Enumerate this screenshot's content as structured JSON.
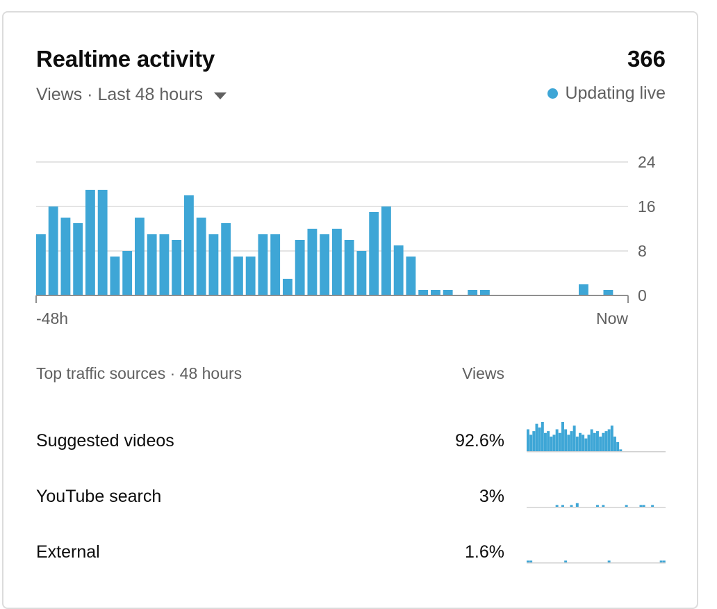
{
  "header": {
    "title": "Realtime activity",
    "total": "366",
    "range_label": "Views · Last 48 hours",
    "live_label": "Updating live"
  },
  "colors": {
    "accent": "#3ea6d6",
    "text_primary": "#0d0d0d",
    "text_secondary": "#606060",
    "gridline": "#dcdcdc"
  },
  "chart_data": {
    "type": "bar",
    "x_start_label": "-48h",
    "x_end_label": "Now",
    "y_ticks": [
      "24",
      "16",
      "8",
      "0"
    ],
    "ylim": [
      0,
      24
    ],
    "values": [
      11,
      16,
      14,
      13,
      19,
      19,
      7,
      8,
      14,
      11,
      11,
      10,
      18,
      14,
      11,
      13,
      7,
      7,
      11,
      11,
      3,
      10,
      12,
      11,
      12,
      10,
      8,
      15,
      16,
      9,
      7,
      1,
      1,
      1,
      0,
      1,
      1,
      0,
      0,
      0,
      0,
      0,
      0,
      0,
      2,
      0,
      1,
      0
    ]
  },
  "traffic": {
    "heading": "Top traffic sources · 48 hours",
    "views_heading": "Views",
    "sources": [
      {
        "label": "Suggested videos",
        "percent": "92.6%",
        "spark": [
          12,
          9,
          11,
          15,
          13,
          16,
          10,
          11,
          8,
          9,
          12,
          10,
          16,
          12,
          9,
          11,
          14,
          8,
          10,
          9,
          7,
          9,
          12,
          10,
          11,
          8,
          10,
          11,
          12,
          14,
          8,
          5,
          1,
          0,
          0,
          0,
          0,
          0,
          0,
          0,
          0,
          0,
          0,
          0,
          0,
          0,
          0,
          0
        ]
      },
      {
        "label": "YouTube search",
        "percent": "3%",
        "spark": [
          0,
          0,
          0,
          0,
          0,
          0,
          0,
          0,
          0,
          0,
          1,
          0,
          1,
          0,
          0,
          1,
          0,
          2,
          0,
          0,
          0,
          0,
          0,
          0,
          1,
          0,
          1,
          0,
          0,
          0,
          0,
          0,
          0,
          0,
          1,
          0,
          0,
          0,
          0,
          1,
          1,
          0,
          0,
          1,
          0,
          0,
          0,
          0
        ]
      },
      {
        "label": "External",
        "percent": "1.6%",
        "spark": [
          1,
          1,
          0,
          0,
          0,
          0,
          0,
          0,
          0,
          0,
          0,
          0,
          0,
          1,
          0,
          0,
          0,
          0,
          0,
          0,
          0,
          0,
          0,
          0,
          0,
          0,
          0,
          0,
          1,
          0,
          0,
          0,
          0,
          0,
          0,
          0,
          0,
          0,
          0,
          0,
          0,
          0,
          0,
          0,
          0,
          0,
          1,
          1
        ]
      }
    ]
  }
}
